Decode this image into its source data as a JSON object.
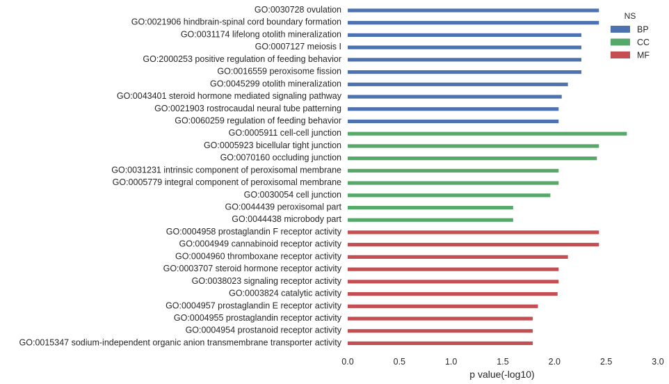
{
  "chart_data": {
    "type": "bar",
    "orientation": "horizontal",
    "xlabel": "p value(-log10)",
    "xlim": [
      0,
      3.0
    ],
    "xticks": [
      "0.0",
      "0.5",
      "1.0",
      "1.5",
      "2.0",
      "2.5",
      "3.0"
    ],
    "grid": false,
    "legend": {
      "title": "NS",
      "placement": "top-right",
      "entries": [
        {
          "name": "BP",
          "color": "#4c72b0"
        },
        {
          "name": "CC",
          "color": "#55a868"
        },
        {
          "name": "MF",
          "color": "#c44e52"
        }
      ]
    },
    "categories": [
      {
        "label": "GO:0030728 ovulation",
        "value": 2.43,
        "ns": "BP"
      },
      {
        "label": "GO:0021906 hindbrain-spinal cord boundary formation",
        "value": 2.43,
        "ns": "BP"
      },
      {
        "label": "GO:0031174 lifelong otolith mineralization",
        "value": 2.26,
        "ns": "BP"
      },
      {
        "label": "GO:0007127 meiosis I",
        "value": 2.26,
        "ns": "BP"
      },
      {
        "label": "GO:2000253 positive regulation of feeding behavior",
        "value": 2.26,
        "ns": "BP"
      },
      {
        "label": "GO:0016559 peroxisome fission",
        "value": 2.26,
        "ns": "BP"
      },
      {
        "label": "GO:0045299 otolith mineralization",
        "value": 2.13,
        "ns": "BP"
      },
      {
        "label": "GO:0043401 steroid hormone mediated signaling pathway",
        "value": 2.07,
        "ns": "BP"
      },
      {
        "label": "GO:0021903 rostrocaudal neural tube patterning",
        "value": 2.04,
        "ns": "BP"
      },
      {
        "label": "GO:0060259 regulation of feeding behavior",
        "value": 2.04,
        "ns": "BP"
      },
      {
        "label": "GO:0005911 cell-cell junction",
        "value": 2.7,
        "ns": "CC"
      },
      {
        "label": "GO:0005923 bicellular tight junction",
        "value": 2.43,
        "ns": "CC"
      },
      {
        "label": "GO:0070160 occluding junction",
        "value": 2.41,
        "ns": "CC"
      },
      {
        "label": "GO:0031231 intrinsic component of peroxisomal membrane",
        "value": 2.04,
        "ns": "CC"
      },
      {
        "label": "GO:0005779 integral component of peroxisomal membrane",
        "value": 2.04,
        "ns": "CC"
      },
      {
        "label": "GO:0030054 cell junction",
        "value": 1.96,
        "ns": "CC"
      },
      {
        "label": "GO:0044439 peroxisomal part",
        "value": 1.6,
        "ns": "CC"
      },
      {
        "label": "GO:0044438 microbody part",
        "value": 1.6,
        "ns": "CC"
      },
      {
        "label": "GO:0004958 prostaglandin F receptor activity",
        "value": 2.43,
        "ns": "MF"
      },
      {
        "label": "GO:0004949 cannabinoid receptor activity",
        "value": 2.43,
        "ns": "MF"
      },
      {
        "label": "GO:0004960 thromboxane receptor activity",
        "value": 2.13,
        "ns": "MF"
      },
      {
        "label": "GO:0003707 steroid hormone receptor activity",
        "value": 2.04,
        "ns": "MF"
      },
      {
        "label": "GO:0038023 signaling receptor activity",
        "value": 2.04,
        "ns": "MF"
      },
      {
        "label": "GO:0003824 catalytic activity",
        "value": 2.03,
        "ns": "MF"
      },
      {
        "label": "GO:0004957 prostaglandin E receptor activity",
        "value": 1.84,
        "ns": "MF"
      },
      {
        "label": "GO:0004955 prostaglandin receptor activity",
        "value": 1.79,
        "ns": "MF"
      },
      {
        "label": "GO:0004954 prostanoid receptor activity",
        "value": 1.79,
        "ns": "MF"
      },
      {
        "label": "GO:0015347 sodium-independent organic anion transmembrane transporter activity",
        "value": 1.79,
        "ns": "MF"
      }
    ]
  }
}
